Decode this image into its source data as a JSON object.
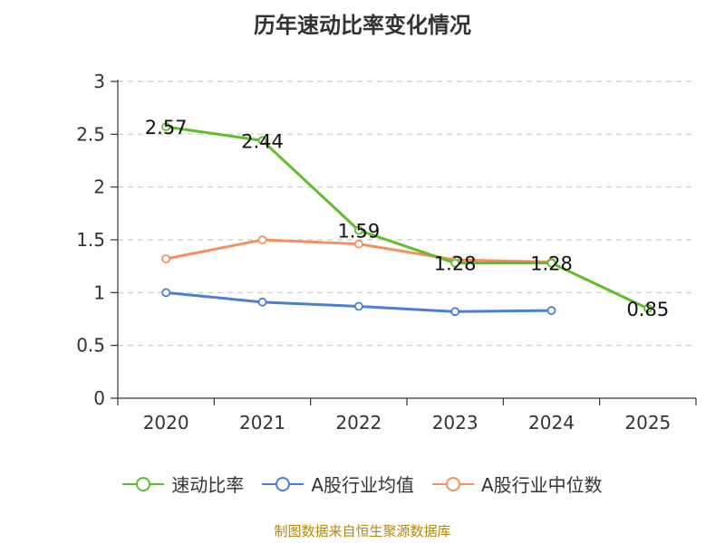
{
  "chart_data": {
    "type": "line",
    "title": "历年速动比率变化情况",
    "categories": [
      "2020",
      "2021",
      "2022",
      "2023",
      "2024",
      "2025"
    ],
    "yticks": [
      "0",
      "0.5",
      "1",
      "1.5",
      "2",
      "2.5",
      "3"
    ],
    "ylim": [
      0,
      3
    ],
    "grid": true,
    "legend_position": "bottom",
    "series": [
      {
        "name": "速动比率",
        "color": "#5cbf2a",
        "values": [
          2.57,
          2.44,
          1.59,
          1.28,
          1.28,
          0.85
        ],
        "labels": [
          "2.57",
          "2.44",
          "1.59",
          "1.28",
          "1.28",
          "0.85"
        ]
      },
      {
        "name": "A股行业均值",
        "color": "#4a7fd4",
        "values": [
          1.0,
          0.91,
          0.87,
          0.82,
          0.83,
          null
        ]
      },
      {
        "name": "A股行业中位数",
        "color": "#f4905e",
        "values": [
          1.32,
          1.5,
          1.46,
          1.31,
          1.29,
          null
        ]
      }
    ]
  },
  "source": "制图数据来自恒生聚源数据库"
}
